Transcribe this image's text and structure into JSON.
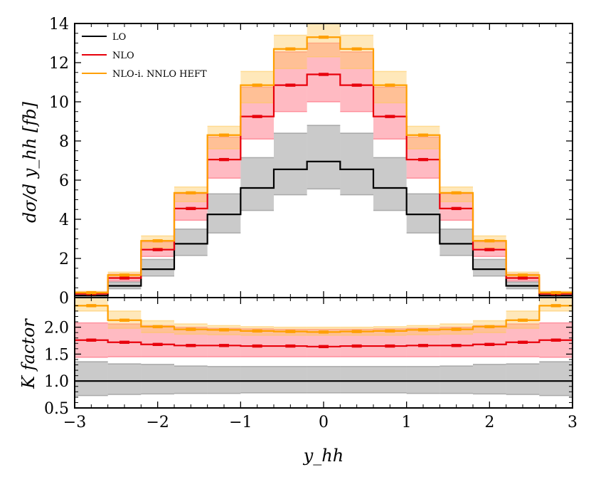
{
  "chart_data": {
    "type": "step-histogram",
    "bins": [
      -3.0,
      -2.6,
      -2.2,
      -1.8,
      -1.4,
      -1.0,
      -0.6,
      -0.2,
      0.2,
      0.6,
      1.0,
      1.4,
      1.8,
      2.2,
      2.6,
      3.0
    ],
    "xlabel": "y_hh",
    "xlim": [
      -3,
      3
    ],
    "x_ticks": [
      -3,
      -2,
      -1,
      0,
      1,
      2,
      3
    ],
    "x_tick_labels": [
      "−3",
      "−2",
      "−1",
      "0",
      "1",
      "2",
      "3"
    ],
    "legend": {
      "placement": "top-left",
      "entries": [
        "LO",
        "NLO",
        "NLO-i. NNLO HEFT"
      ]
    },
    "colors": {
      "LO": "#000000",
      "NLO": "#e8000b",
      "NNLO": "#ff9f00",
      "LO_band": "#808080",
      "NLO_band": "#ff5a6e",
      "NNLO_band": "#ffc85a"
    },
    "top_panel": {
      "ylabel": "dσ/d y_hh [fb]",
      "ylim": [
        0,
        14
      ],
      "y_ticks": [
        0,
        2,
        4,
        6,
        8,
        10,
        12,
        14
      ],
      "series": [
        {
          "name": "LO",
          "values": [
            0.1,
            0.6,
            1.45,
            2.75,
            4.25,
            5.6,
            6.55,
            6.95,
            6.55,
            5.6,
            4.25,
            2.75,
            1.45,
            0.6,
            0.1
          ],
          "band_low": [
            0.08,
            0.45,
            1.1,
            2.15,
            3.3,
            4.45,
            5.25,
            5.55,
            5.25,
            4.45,
            3.3,
            2.15,
            1.1,
            0.45,
            0.08
          ],
          "band_high": [
            0.14,
            0.8,
            1.95,
            3.5,
            5.3,
            7.15,
            8.4,
            8.8,
            8.4,
            7.15,
            5.3,
            3.5,
            1.95,
            0.8,
            0.14
          ]
        },
        {
          "name": "NLO",
          "values": [
            0.2,
            1.0,
            2.45,
            4.55,
            7.05,
            9.25,
            10.85,
            11.4,
            10.85,
            9.25,
            7.05,
            4.55,
            2.45,
            1.0,
            0.2
          ],
          "band_low": [
            0.16,
            0.85,
            2.1,
            3.95,
            6.1,
            8.1,
            9.5,
            10.0,
            9.5,
            8.1,
            6.1,
            3.95,
            2.1,
            0.85,
            0.16
          ],
          "band_high": [
            0.28,
            1.2,
            2.85,
            5.3,
            8.2,
            10.75,
            12.55,
            13.0,
            12.55,
            10.75,
            8.2,
            5.3,
            2.85,
            1.2,
            0.28
          ]
        },
        {
          "name": "NLO-i. NNLO HEFT",
          "values": [
            0.25,
            1.15,
            2.9,
            5.35,
            8.3,
            10.85,
            12.7,
            13.3,
            12.7,
            10.85,
            8.3,
            5.35,
            2.9,
            1.15,
            0.25
          ],
          "band_low": [
            0.2,
            1.0,
            2.55,
            4.9,
            7.6,
            9.95,
            11.7,
            12.3,
            11.7,
            9.95,
            7.6,
            4.9,
            2.55,
            1.0,
            0.2
          ],
          "band_high": [
            0.32,
            1.3,
            3.15,
            5.65,
            8.75,
            11.55,
            13.4,
            14.0,
            13.4,
            11.55,
            8.75,
            5.65,
            3.15,
            1.3,
            0.32
          ]
        }
      ]
    },
    "bottom_panel": {
      "ylabel": "K factor",
      "ylim": [
        0.5,
        2.55
      ],
      "y_ticks": [
        0.5,
        1.0,
        1.5,
        2.0
      ],
      "y_tick_labels": [
        "0.5",
        "1.0",
        "1.5",
        "2.0"
      ],
      "series": [
        {
          "name": "LO",
          "values": [
            1,
            1,
            1,
            1,
            1,
            1,
            1,
            1,
            1,
            1,
            1,
            1,
            1,
            1,
            1
          ],
          "band_low": [
            0.73,
            0.75,
            0.76,
            0.77,
            0.77,
            0.78,
            0.78,
            0.78,
            0.78,
            0.78,
            0.77,
            0.77,
            0.76,
            0.75,
            0.73
          ],
          "band_high": [
            1.36,
            1.32,
            1.31,
            1.28,
            1.27,
            1.27,
            1.27,
            1.27,
            1.27,
            1.27,
            1.27,
            1.28,
            1.31,
            1.32,
            1.36
          ]
        },
        {
          "name": "NLO",
          "values": [
            1.76,
            1.72,
            1.68,
            1.66,
            1.66,
            1.65,
            1.65,
            1.64,
            1.65,
            1.65,
            1.66,
            1.66,
            1.68,
            1.72,
            1.76
          ],
          "band_low": [
            1.44,
            1.45,
            1.45,
            1.45,
            1.45,
            1.45,
            1.45,
            1.45,
            1.45,
            1.45,
            1.45,
            1.45,
            1.45,
            1.45,
            1.44
          ],
          "band_high": [
            2.08,
            2.06,
            2.03,
            2.0,
            1.98,
            1.97,
            1.96,
            1.96,
            1.96,
            1.97,
            1.98,
            2.0,
            2.03,
            2.06,
            2.08
          ]
        },
        {
          "name": "NLO-i. NNLO HEFT",
          "values": [
            2.4,
            2.13,
            2.01,
            1.96,
            1.95,
            1.93,
            1.92,
            1.91,
            1.92,
            1.93,
            1.95,
            1.96,
            2.01,
            2.13,
            2.4
          ],
          "band_low": [
            2.3,
            1.98,
            1.9,
            1.87,
            1.86,
            1.85,
            1.85,
            1.85,
            1.85,
            1.85,
            1.86,
            1.87,
            1.9,
            1.98,
            2.3
          ],
          "band_high": [
            2.55,
            2.3,
            2.12,
            2.06,
            2.03,
            2.01,
            2.0,
            2.0,
            2.0,
            2.01,
            2.03,
            2.06,
            2.12,
            2.3,
            2.55
          ]
        }
      ]
    }
  }
}
